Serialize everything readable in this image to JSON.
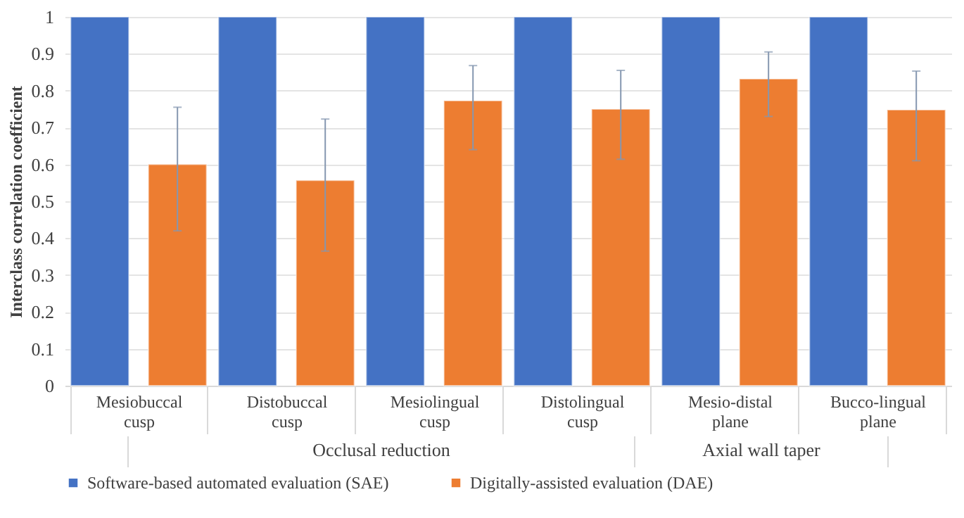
{
  "chart_data": {
    "type": "bar",
    "ylabel": "Interclass correlation coefficient",
    "categories": [
      "Mesiobuccal cusp",
      "Distobuccal cusp",
      "Mesiolingual cusp",
      "Distolingual cusp",
      "Mesio-distal plane",
      "Bucco-lingual plane"
    ],
    "series": [
      {
        "name": "Software-based automated evaluation (SAE)",
        "color": "#4472c4",
        "values": [
          1,
          1,
          1,
          1,
          1,
          1
        ]
      },
      {
        "name": "Digitally-assisted evaluation (DAE)",
        "color": "#ed7d31",
        "values": [
          0.6,
          0.557,
          0.773,
          0.75,
          0.832,
          0.748
        ],
        "errors": [
          [
            0.42,
            0.755
          ],
          [
            0.365,
            0.723
          ],
          [
            0.64,
            0.868
          ],
          [
            0.614,
            0.855
          ],
          [
            0.73,
            0.905
          ],
          [
            0.61,
            0.853
          ]
        ]
      }
    ],
    "annotations": [
      "Occlusal reduction",
      "Axial wall taper"
    ],
    "ylim": [
      0,
      1
    ],
    "yticks": [
      0,
      0.1,
      0.2,
      0.3,
      0.4,
      0.5,
      0.6,
      0.7,
      0.8,
      0.9,
      1
    ],
    "grid": "y",
    "legend": "bottom"
  }
}
